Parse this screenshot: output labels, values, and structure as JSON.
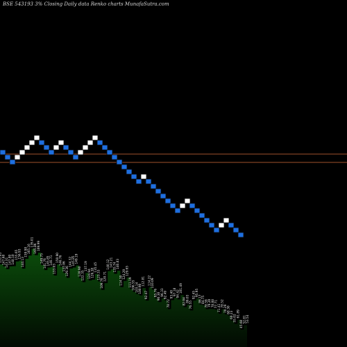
{
  "header": {
    "title": "BSE 543193 3%  Closing Daily data  Renko  charts MunafaSutra.com"
  },
  "colors": {
    "background": "#000000",
    "up_brick": "#ffffff",
    "down_brick": "#1e6fe0",
    "brick_border": "#0a0a0a",
    "reference_line": "#a0522d",
    "area_fill_top": "#0b4d0b",
    "area_fill_bottom": "#020a02"
  },
  "chart_data": [
    {
      "type": "renko",
      "reversal_pct": 3,
      "brick_directions": [
        "down",
        "down",
        "down",
        "up",
        "up",
        "up",
        "up",
        "up",
        "down",
        "down",
        "down",
        "up",
        "up",
        "down",
        "down",
        "down",
        "up",
        "up",
        "up",
        "up",
        "down",
        "down",
        "down",
        "down",
        "down",
        "down",
        "down",
        "down",
        "down",
        "up",
        "down",
        "down",
        "down",
        "down",
        "down",
        "down",
        "down",
        "up",
        "up",
        "down",
        "down",
        "down",
        "down",
        "down",
        "down",
        "up",
        "up",
        "down",
        "down",
        "down"
      ],
      "reference_levels": [
        "upper",
        "lower"
      ]
    },
    {
      "type": "area",
      "labels": [
        "151.05",
        "147.68",
        "143.31",
        "147.80",
        "148.10",
        "155.65",
        "156.93",
        "144.13",
        "159.98",
        "165.16",
        "176.01",
        "165.86",
        "169.99",
        "149.75",
        "141.76",
        "145.85",
        "146.71",
        "133.03",
        "150.90",
        "146.76",
        "137.06",
        "129.36",
        "144.32",
        "145.85",
        "149.19",
        "128.90",
        "122.35",
        "137.19",
        "124.94",
        "126.38",
        "135.45",
        "123.33",
        "109.76",
        "120.71",
        "140.12",
        "143.21",
        "135.74",
        "140.83",
        "114.30",
        "124.20",
        "129.65",
        "111.19",
        "106.55",
        "103.14",
        "100.90",
        "112.81",
        "92.47",
        "114.22",
        "110.09",
        "95.76",
        "90.30",
        "96.33",
        "92.49",
        "78.72",
        "93.40",
        "97.18",
        "94.42",
        "101.49",
        "82.04",
        "86.03",
        "76.55",
        "92.45",
        "95.95",
        "86.17",
        "84.75",
        "78.59",
        "79.20",
        "78.88",
        "77.71",
        "71.41",
        "78.52",
        "70.29",
        "68.30",
        "60.23",
        "55.02",
        "61.89",
        "45.60",
        "52.81",
        "53.54"
      ]
    }
  ]
}
